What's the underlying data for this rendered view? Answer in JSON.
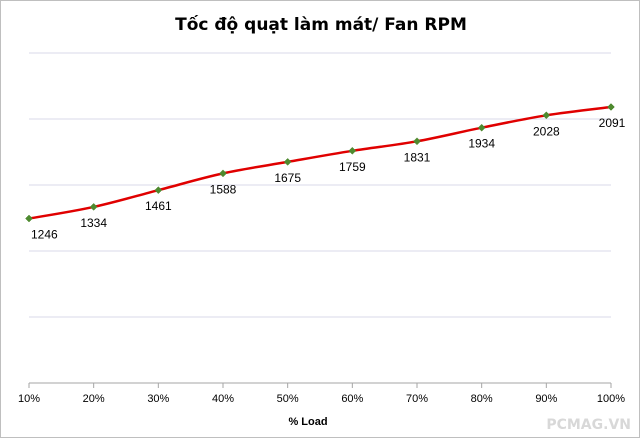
{
  "chart_data": {
    "type": "line",
    "title": "Tốc độ quạt làm mát/ Fan RPM",
    "xlabel": "% Load",
    "ylabel": "",
    "categories": [
      "10%",
      "20%",
      "30%",
      "40%",
      "50%",
      "60%",
      "70%",
      "80%",
      "90%",
      "100%"
    ],
    "series": [
      {
        "name": "Fan RPM",
        "values": [
          1246,
          1334,
          1461,
          1588,
          1675,
          1759,
          1831,
          1934,
          2028,
          2091
        ],
        "color": "#e00000",
        "marker_color": "#4e8a2f"
      }
    ],
    "ylim": [
      0,
      2500
    ],
    "grid": true,
    "y_ticks_visible": false
  },
  "watermark": "PCMAG.VN",
  "colors": {
    "line": "#e00000",
    "marker": "#4e8a2f",
    "gridline": "#d9d9e8",
    "axis": "#a6a6a6",
    "border": "#bfbfbf"
  }
}
